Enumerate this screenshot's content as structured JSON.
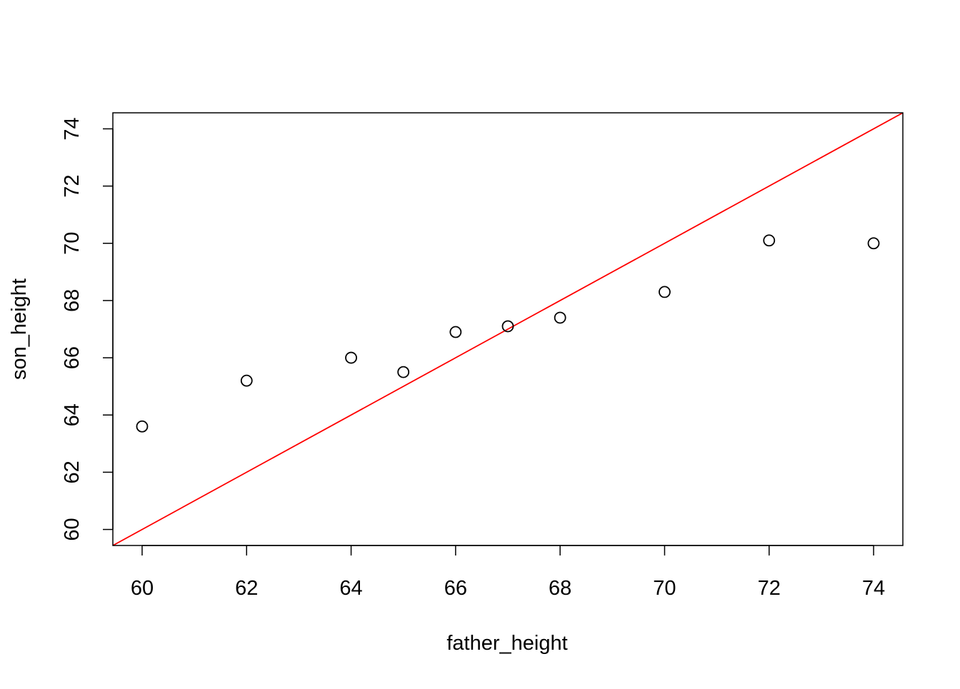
{
  "chart_data": {
    "type": "scatter",
    "title": "",
    "xlabel": "father_height",
    "ylabel": "son_height",
    "xlim": [
      59.44,
      74.56
    ],
    "ylim": [
      59.44,
      74.56
    ],
    "x_ticks": [
      60,
      62,
      64,
      66,
      68,
      70,
      72,
      74
    ],
    "y_ticks": [
      60,
      62,
      64,
      66,
      68,
      70,
      72,
      74
    ],
    "grid": false,
    "legend": "none",
    "points": [
      {
        "x": 60,
        "y": 63.6
      },
      {
        "x": 62,
        "y": 65.2
      },
      {
        "x": 64,
        "y": 66.0
      },
      {
        "x": 65,
        "y": 65.5
      },
      {
        "x": 66,
        "y": 66.9
      },
      {
        "x": 67,
        "y": 67.1
      },
      {
        "x": 68,
        "y": 67.4
      },
      {
        "x": 70,
        "y": 68.3
      },
      {
        "x": 72,
        "y": 70.1
      },
      {
        "x": 74,
        "y": 70.0
      }
    ],
    "reference_line": {
      "intercept": 0,
      "slope": 1,
      "color": "#ff0000"
    },
    "point_color": "#000000"
  }
}
